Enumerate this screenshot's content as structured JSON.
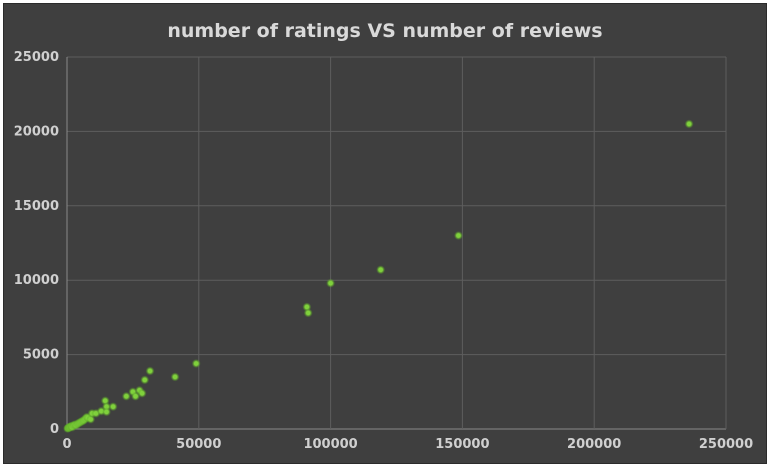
{
  "chart_data": {
    "type": "scatter",
    "title": "number of ratings VS number of reviews",
    "xlabel": "",
    "ylabel": "",
    "xlim": [
      0,
      250000
    ],
    "ylim": [
      0,
      25000
    ],
    "xticks": [
      "0",
      "50000",
      "100000",
      "150000",
      "200000",
      "250000"
    ],
    "yticks": [
      "0",
      "5000",
      "10000",
      "15000",
      "20000",
      "25000"
    ],
    "grid": true,
    "colors": {
      "background": "#3f3f3f",
      "grid": "#5e5e5e",
      "marker": "#7fd13b",
      "marker_glow": "#5fbf1f"
    },
    "points": [
      {
        "x": 200,
        "y": 30
      },
      {
        "x": 400,
        "y": 60
      },
      {
        "x": 600,
        "y": 80
      },
      {
        "x": 800,
        "y": 120
      },
      {
        "x": 1000,
        "y": 100
      },
      {
        "x": 1200,
        "y": 150
      },
      {
        "x": 1500,
        "y": 180
      },
      {
        "x": 1800,
        "y": 200
      },
      {
        "x": 2000,
        "y": 120
      },
      {
        "x": 2500,
        "y": 250
      },
      {
        "x": 3000,
        "y": 300
      },
      {
        "x": 3500,
        "y": 250
      },
      {
        "x": 4000,
        "y": 350
      },
      {
        "x": 4500,
        "y": 400
      },
      {
        "x": 5000,
        "y": 450
      },
      {
        "x": 5500,
        "y": 500
      },
      {
        "x": 6000,
        "y": 550
      },
      {
        "x": 6500,
        "y": 600
      },
      {
        "x": 7000,
        "y": 700
      },
      {
        "x": 7500,
        "y": 800
      },
      {
        "x": 8000,
        "y": 750
      },
      {
        "x": 9000,
        "y": 650
      },
      {
        "x": 9500,
        "y": 1050
      },
      {
        "x": 11000,
        "y": 1050
      },
      {
        "x": 13000,
        "y": 1200
      },
      {
        "x": 14500,
        "y": 1900
      },
      {
        "x": 15000,
        "y": 1500
      },
      {
        "x": 15000,
        "y": 1150
      },
      {
        "x": 17500,
        "y": 1500
      },
      {
        "x": 22500,
        "y": 2200
      },
      {
        "x": 25000,
        "y": 2500
      },
      {
        "x": 26000,
        "y": 2200
      },
      {
        "x": 27500,
        "y": 2600
      },
      {
        "x": 28500,
        "y": 2400
      },
      {
        "x": 29500,
        "y": 3300
      },
      {
        "x": 31500,
        "y": 3900
      },
      {
        "x": 41000,
        "y": 3500
      },
      {
        "x": 49000,
        "y": 4400
      },
      {
        "x": 91000,
        "y": 8200
      },
      {
        "x": 91500,
        "y": 7800
      },
      {
        "x": 100000,
        "y": 9800
      },
      {
        "x": 119000,
        "y": 10700
      },
      {
        "x": 148500,
        "y": 13000
      },
      {
        "x": 236000,
        "y": 20500
      }
    ]
  }
}
